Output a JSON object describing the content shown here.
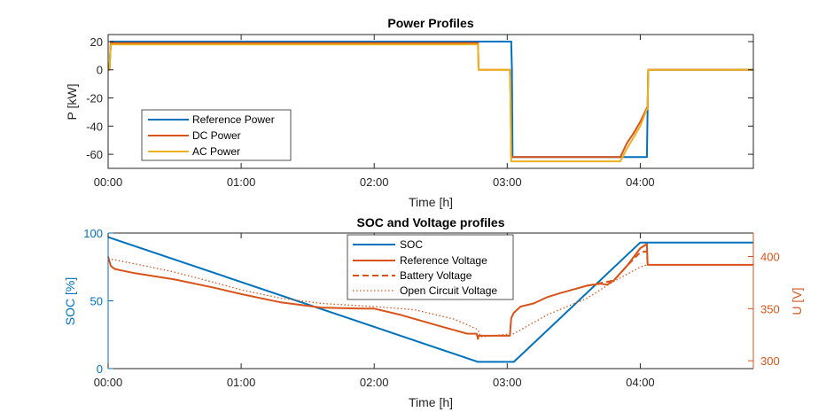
{
  "chart_data": [
    {
      "type": "line",
      "title": "Power Profiles",
      "xlabel": "Time [h]",
      "ylabel": "P [kW]",
      "xlim": [
        0,
        4.85
      ],
      "ylim": [
        -70,
        25
      ],
      "xticks": [
        0,
        1,
        2,
        3,
        4
      ],
      "xtick_labels": [
        "00:00",
        "01:00",
        "02:00",
        "03:00",
        "04:00"
      ],
      "yticks": [
        20,
        0,
        -20,
        -40,
        -60
      ],
      "ytick_labels": [
        "20",
        "0",
        "-20",
        "-40",
        "-60"
      ],
      "grid": false,
      "legend_position": "bottom-left",
      "series": [
        {
          "name": "Reference Power",
          "color": "#0072BD",
          "style": "solid",
          "x": [
            0,
            0.01,
            0.02,
            3.03,
            3.035,
            3.04,
            4.05,
            4.055,
            4.06,
            4.85
          ],
          "y": [
            0,
            0,
            20,
            20,
            0,
            -62,
            -62,
            -28,
            0,
            0
          ]
        },
        {
          "name": "DC Power",
          "color": "#D95319",
          "style": "solid",
          "x": [
            0,
            0.01,
            0.02,
            2.78,
            2.785,
            3.02,
            3.025,
            3.03,
            3.85,
            3.9,
            3.95,
            4.0,
            4.05,
            4.055,
            4.06,
            4.85
          ],
          "y": [
            0,
            0,
            19,
            19,
            0,
            0,
            -20,
            -62,
            -62,
            -52,
            -45,
            -37,
            -27,
            -27,
            0,
            0
          ]
        },
        {
          "name": "AC Power",
          "color": "#EDB120",
          "style": "solid",
          "x": [
            0,
            0.01,
            0.02,
            2.78,
            2.785,
            3.02,
            3.025,
            3.03,
            3.85,
            3.9,
            3.95,
            4.0,
            4.05,
            4.055,
            4.06,
            4.85
          ],
          "y": [
            0,
            0,
            18,
            18,
            0,
            0,
            -20,
            -65,
            -65,
            -56,
            -48,
            -40,
            -28,
            -28,
            0,
            0
          ]
        }
      ]
    },
    {
      "type": "line",
      "title": "SOC and Voltage profiles",
      "xlabel": "Time [h]",
      "ylabel": "SOC [%]",
      "ylabel_right": "U [V]",
      "xlim": [
        0,
        4.85
      ],
      "ylim": [
        0,
        100
      ],
      "ylim_right": [
        292.5,
        422.5
      ],
      "xticks": [
        0,
        1,
        2,
        3,
        4
      ],
      "xtick_labels": [
        "00:00",
        "01:00",
        "02:00",
        "03:00",
        "04:00"
      ],
      "yticks": [
        100,
        50,
        0
      ],
      "ytick_labels": [
        "100",
        "50",
        "0"
      ],
      "yticks_right": [
        400,
        350,
        300
      ],
      "ytick_labels_right": [
        "400",
        "350",
        "300"
      ],
      "left_axis_color": "#0072BD",
      "right_axis_color": "#D95319",
      "grid": false,
      "legend_position": "top-center",
      "series": [
        {
          "name": "SOC",
          "axis": "left",
          "color": "#0072BD",
          "style": "solid",
          "x": [
            0,
            2.78,
            3.05,
            4.0,
            4.85
          ],
          "y": [
            97,
            5,
            5,
            93,
            93
          ]
        },
        {
          "name": "Reference Voltage",
          "axis": "right",
          "color": "#D95319",
          "style": "solid",
          "x": [
            0,
            0.02,
            0.05,
            0.2,
            0.5,
            0.8,
            1.0,
            1.3,
            1.6,
            1.9,
            2.0,
            2.2,
            2.5,
            2.7,
            2.77,
            2.78,
            2.785,
            3.02,
            3.03,
            3.05,
            3.1,
            3.2,
            3.3,
            3.4,
            3.6,
            3.7,
            3.75,
            3.8,
            3.9,
            4.0,
            4.05,
            4.055,
            4.85
          ],
          "y": [
            400,
            391,
            388,
            384,
            378,
            370,
            364,
            356,
            351,
            350,
            350,
            344,
            333,
            326,
            326,
            321,
            324,
            324,
            341,
            346,
            352,
            355,
            361,
            365,
            372,
            374,
            373,
            377,
            391,
            408,
            412,
            392,
            392
          ]
        },
        {
          "name": "Battery Voltage",
          "axis": "right",
          "color": "#D95319",
          "style": "dashed",
          "x": [
            3.6,
            3.8,
            3.9,
            4.0,
            4.05,
            4.055
          ],
          "y": [
            372,
            377,
            391,
            404,
            405,
            392
          ]
        },
        {
          "name": "Open Circuit Voltage",
          "axis": "right",
          "color": "#D95319",
          "style": "dotted",
          "x": [
            0,
            0.2,
            0.5,
            0.8,
            1.0,
            1.3,
            1.6,
            2.0,
            2.3,
            2.6,
            2.78,
            2.8,
            3.05,
            3.3,
            3.6,
            3.8,
            4.0,
            4.05,
            4.85
          ],
          "y": [
            398,
            393,
            385,
            375,
            368,
            360,
            355,
            352,
            349,
            340,
            330,
            323,
            326,
            344,
            360,
            376,
            390,
            392,
            392
          ]
        }
      ]
    }
  ]
}
